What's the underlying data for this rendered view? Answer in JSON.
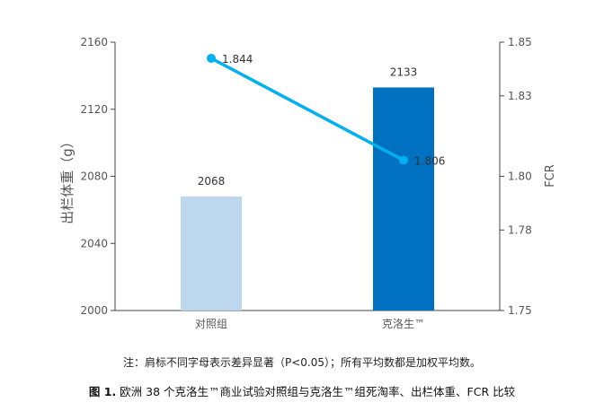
{
  "chart_data": {
    "type": "bar+line",
    "categories": [
      "对照组",
      "克洛生™"
    ],
    "bar_series": {
      "axis": "left",
      "values": [
        2068,
        2133
      ],
      "colors": [
        "#BDD7EE",
        "#0070C0"
      ]
    },
    "line_series": {
      "axis": "right",
      "values": [
        1.844,
        1.806
      ],
      "color": "#00B0F0"
    },
    "bar_labels": [
      "2068",
      "2133"
    ],
    "line_labels": [
      "1.844",
      "1.806"
    ],
    "y_left": {
      "label": "出栏体重（g）",
      "ylim": [
        2000,
        2160
      ],
      "ticks": [
        "2000",
        "2040",
        "2080",
        "2120",
        "2160"
      ]
    },
    "y_right": {
      "label": "FCR",
      "ylim": [
        1.75,
        1.85
      ],
      "ticks": [
        "1.75",
        "1.78",
        "1.80",
        "1.83",
        "1.85"
      ]
    },
    "grid": false
  },
  "note": "注：肩标不同字母表示差异显著（P<0.05）；所有平均数都是加权平均数。",
  "caption": {
    "fig_label": "图 1.",
    "text": " 欧洲 38 个克洛生™商业试验对照组与克洛生™组死淘率、出栏体重、FCR 比较"
  }
}
